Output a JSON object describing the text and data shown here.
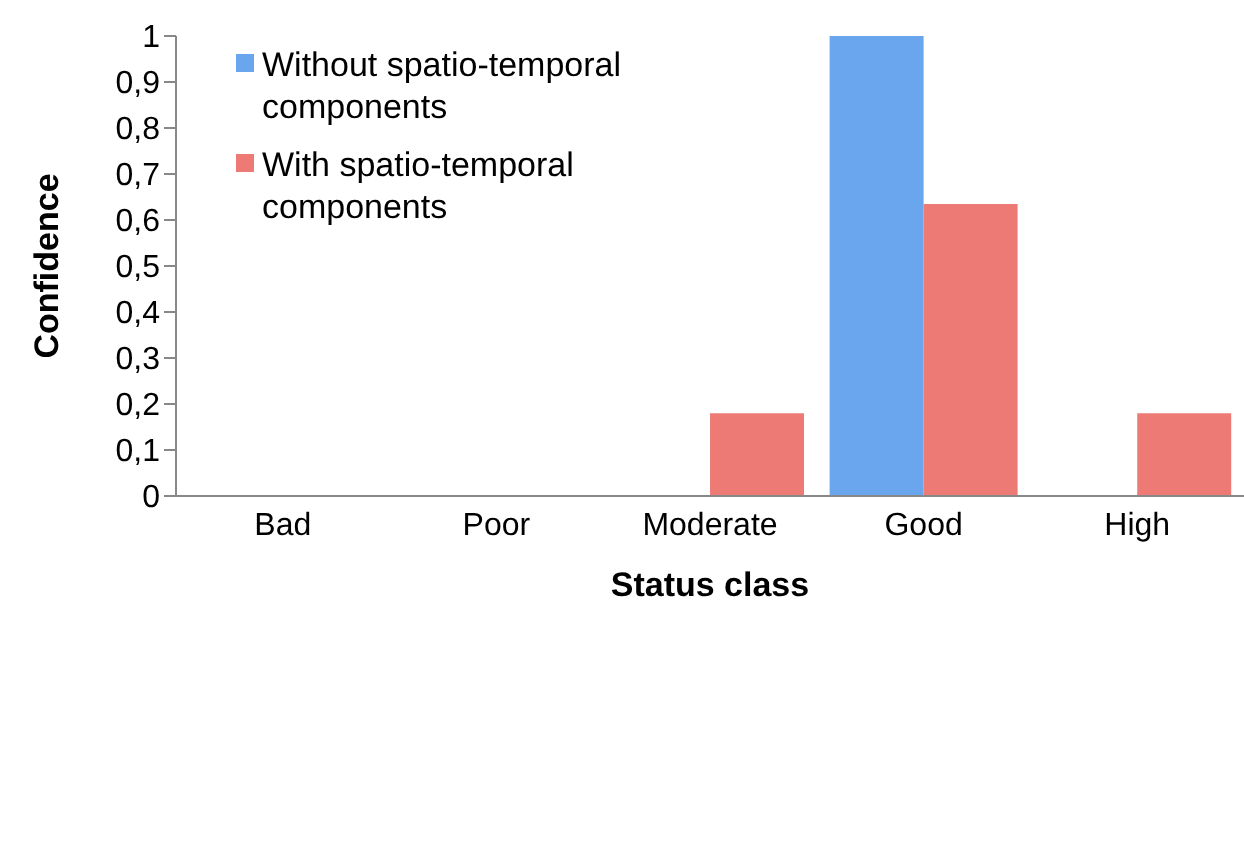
{
  "chart_data": {
    "type": "bar",
    "xlabel": "Status class",
    "ylabel": "Confidence",
    "categories": [
      "Bad",
      "Poor",
      "Moderate",
      "Good",
      "High"
    ],
    "series": [
      {
        "name": "Without spatio-temporal components",
        "color": "#6aa6ee",
        "values": [
          0,
          0,
          0,
          1,
          0
        ]
      },
      {
        "name": "With spatio-temporal components",
        "color": "#ee7a76",
        "values": [
          0,
          0,
          0.18,
          0.635,
          0.18
        ]
      }
    ],
    "ylim": [
      0,
      1
    ],
    "yticks": [
      0,
      {
        "value": 0.1,
        "label": "0,1"
      },
      {
        "value": 0.2,
        "label": "0,2"
      },
      {
        "value": 0.3,
        "label": "0,3"
      },
      {
        "value": 0.4,
        "label": "0,4"
      },
      {
        "value": 0.5,
        "label": "0,5"
      },
      {
        "value": 0.6,
        "label": "0,6"
      },
      {
        "value": 0.7,
        "label": "0,7"
      },
      {
        "value": 0.8,
        "label": "0,8"
      },
      {
        "value": 0.9,
        "label": "0,9"
      },
      1
    ],
    "grid": false,
    "legend": "top left"
  }
}
